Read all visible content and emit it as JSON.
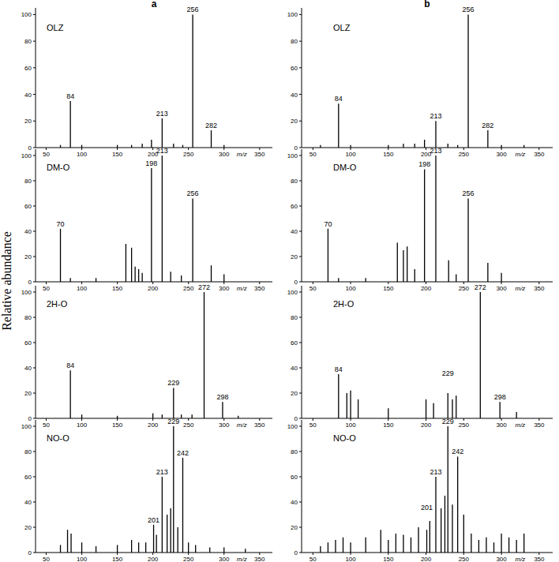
{
  "chart_data": [
    {
      "type": "bar",
      "title": "OLZ",
      "subtitle": "a",
      "ylabel": "Relative abundance",
      "xlabel": "m/z",
      "color": "#000000",
      "x": [
        70,
        84,
        100,
        150,
        170,
        185,
        198,
        213,
        229,
        242,
        256,
        282,
        300
      ],
      "values": [
        2,
        35,
        2,
        2,
        2,
        3,
        6,
        22,
        3,
        2,
        100,
        13,
        2
      ],
      "xlim": [
        35,
        368
      ],
      "ylim": [
        0,
        105
      ],
      "xticks": [
        50,
        100,
        150,
        200,
        250,
        300,
        350
      ],
      "yticks": [
        0,
        20,
        40,
        60,
        80,
        100
      ],
      "annotations": [
        {
          "text": "84",
          "x": 84,
          "y": 37
        },
        {
          "text": "213",
          "x": 213,
          "y": 24
        },
        {
          "text": "256",
          "x": 256,
          "y": 102
        },
        {
          "text": "282",
          "x": 282,
          "y": 15
        }
      ]
    },
    {
      "type": "bar",
      "title": "DM-O",
      "xlabel": "m/z",
      "color": "#000000",
      "x": [
        70,
        84,
        120,
        162,
        170,
        175,
        180,
        185,
        198,
        213,
        225,
        240,
        256,
        282,
        300
      ],
      "values": [
        42,
        3,
        3,
        30,
        27,
        12,
        10,
        7,
        90,
        100,
        8,
        5,
        66,
        13,
        6
      ],
      "xlim": [
        35,
        368
      ],
      "ylim": [
        0,
        105
      ],
      "xticks": [
        50,
        100,
        150,
        200,
        250,
        300,
        350
      ],
      "yticks": [
        0,
        20,
        40,
        60,
        80,
        100
      ],
      "annotations": [
        {
          "text": "70",
          "x": 70,
          "y": 44
        },
        {
          "text": "198",
          "x": 198,
          "y": 92
        },
        {
          "text": "213",
          "x": 213,
          "y": 102
        },
        {
          "text": "256",
          "x": 256,
          "y": 68
        }
      ]
    },
    {
      "type": "bar",
      "title": "2H-O",
      "xlabel": "m/z",
      "color": "#000000",
      "x": [
        84,
        100,
        150,
        200,
        213,
        229,
        240,
        255,
        272,
        298,
        320
      ],
      "values": [
        38,
        3,
        2,
        4,
        3,
        24,
        3,
        3,
        100,
        13,
        2
      ],
      "xlim": [
        35,
        368
      ],
      "ylim": [
        0,
        105
      ],
      "xticks": [
        50,
        100,
        150,
        200,
        250,
        300,
        350
      ],
      "yticks": [
        0,
        20,
        40,
        60,
        80,
        100
      ],
      "annotations": [
        {
          "text": "84",
          "x": 84,
          "y": 40
        },
        {
          "text": "229",
          "x": 229,
          "y": 26
        },
        {
          "text": "272",
          "x": 272,
          "y": 102
        },
        {
          "text": "298",
          "x": 298,
          "y": 15
        }
      ]
    },
    {
      "type": "bar",
      "title": "NO-O",
      "xlabel": "m/z",
      "color": "#000000",
      "x": [
        70,
        80,
        85,
        100,
        120,
        150,
        170,
        180,
        190,
        201,
        205,
        213,
        220,
        225,
        229,
        235,
        242,
        250,
        260,
        280,
        300,
        330
      ],
      "values": [
        6,
        18,
        15,
        8,
        5,
        6,
        10,
        8,
        8,
        22,
        14,
        60,
        30,
        35,
        100,
        20,
        75,
        8,
        6,
        4,
        4,
        3
      ],
      "xlim": [
        35,
        368
      ],
      "ylim": [
        0,
        105
      ],
      "xticks": [
        50,
        100,
        150,
        200,
        250,
        300,
        350
      ],
      "yticks": [
        0,
        20,
        40,
        60,
        80,
        100
      ],
      "annotations": [
        {
          "text": "201",
          "x": 201,
          "y": 24
        },
        {
          "text": "213",
          "x": 213,
          "y": 62
        },
        {
          "text": "229",
          "x": 229,
          "y": 102
        },
        {
          "text": "242",
          "x": 242,
          "y": 77
        }
      ]
    },
    {
      "type": "bar",
      "title": "OLZ",
      "subtitle": "b",
      "xlabel": "m/z",
      "color": "#000000",
      "x": [
        60,
        84,
        100,
        150,
        170,
        185,
        198,
        213,
        229,
        242,
        256,
        282,
        300,
        330
      ],
      "values": [
        2,
        33,
        2,
        2,
        3,
        3,
        6,
        20,
        3,
        2,
        100,
        13,
        2,
        2
      ],
      "xlim": [
        35,
        368
      ],
      "ylim": [
        0,
        105
      ],
      "xticks": [
        50,
        100,
        150,
        200,
        250,
        300,
        350
      ],
      "yticks": [
        0,
        20,
        40,
        60,
        80,
        100
      ],
      "annotations": [
        {
          "text": "84",
          "x": 84,
          "y": 35
        },
        {
          "text": "213",
          "x": 213,
          "y": 22
        },
        {
          "text": "256",
          "x": 256,
          "y": 102
        },
        {
          "text": "282",
          "x": 282,
          "y": 15
        }
      ]
    },
    {
      "type": "bar",
      "title": "DM-O",
      "xlabel": "m/z",
      "color": "#000000",
      "x": [
        70,
        84,
        120,
        162,
        170,
        175,
        185,
        198,
        213,
        230,
        240,
        256,
        282,
        300
      ],
      "values": [
        42,
        3,
        3,
        31,
        25,
        28,
        10,
        89,
        100,
        17,
        6,
        66,
        15,
        7
      ],
      "xlim": [
        35,
        368
      ],
      "ylim": [
        0,
        105
      ],
      "xticks": [
        50,
        100,
        150,
        200,
        250,
        300,
        350
      ],
      "yticks": [
        0,
        20,
        40,
        60,
        80,
        100
      ],
      "annotations": [
        {
          "text": "70",
          "x": 70,
          "y": 44
        },
        {
          "text": "198",
          "x": 198,
          "y": 91
        },
        {
          "text": "213",
          "x": 213,
          "y": 102
        },
        {
          "text": "256",
          "x": 256,
          "y": 68
        }
      ]
    },
    {
      "type": "bar",
      "title": "2H-O",
      "xlabel": "m/z",
      "color": "#000000",
      "x": [
        84,
        95,
        100,
        110,
        150,
        200,
        210,
        229,
        235,
        240,
        272,
        298,
        320
      ],
      "values": [
        35,
        20,
        22,
        15,
        8,
        15,
        12,
        20,
        15,
        18,
        100,
        13,
        5
      ],
      "xlim": [
        35,
        368
      ],
      "ylim": [
        0,
        105
      ],
      "xticks": [
        50,
        100,
        150,
        200,
        250,
        300,
        350
      ],
      "yticks": [
        0,
        20,
        40,
        60,
        80,
        100
      ],
      "annotations": [
        {
          "text": "84",
          "x": 84,
          "y": 37
        },
        {
          "text": "229",
          "x": 229,
          "y": 34
        },
        {
          "text": "272",
          "x": 272,
          "y": 102
        },
        {
          "text": "298",
          "x": 298,
          "y": 15
        }
      ]
    },
    {
      "type": "bar",
      "title": "NO-O",
      "xlabel": "m/z",
      "color": "#000000",
      "x": [
        60,
        70,
        80,
        90,
        100,
        120,
        140,
        150,
        160,
        170,
        180,
        190,
        201,
        205,
        213,
        220,
        225,
        229,
        235,
        242,
        250,
        260,
        270,
        280,
        290,
        300,
        310,
        320,
        330
      ],
      "values": [
        5,
        8,
        10,
        12,
        8,
        12,
        18,
        10,
        15,
        14,
        12,
        20,
        18,
        25,
        60,
        35,
        45,
        100,
        38,
        76,
        30,
        15,
        10,
        12,
        8,
        15,
        12,
        10,
        15
      ],
      "xlim": [
        35,
        368
      ],
      "ylim": [
        0,
        105
      ],
      "xticks": [
        50,
        100,
        150,
        200,
        250,
        300,
        350
      ],
      "yticks": [
        0,
        20,
        40,
        60,
        80,
        100
      ],
      "annotations": [
        {
          "text": "201",
          "x": 201,
          "y": 34
        },
        {
          "text": "213",
          "x": 213,
          "y": 62
        },
        {
          "text": "229",
          "x": 229,
          "y": 102
        },
        {
          "text": "242",
          "x": 242,
          "y": 78
        }
      ]
    }
  ]
}
